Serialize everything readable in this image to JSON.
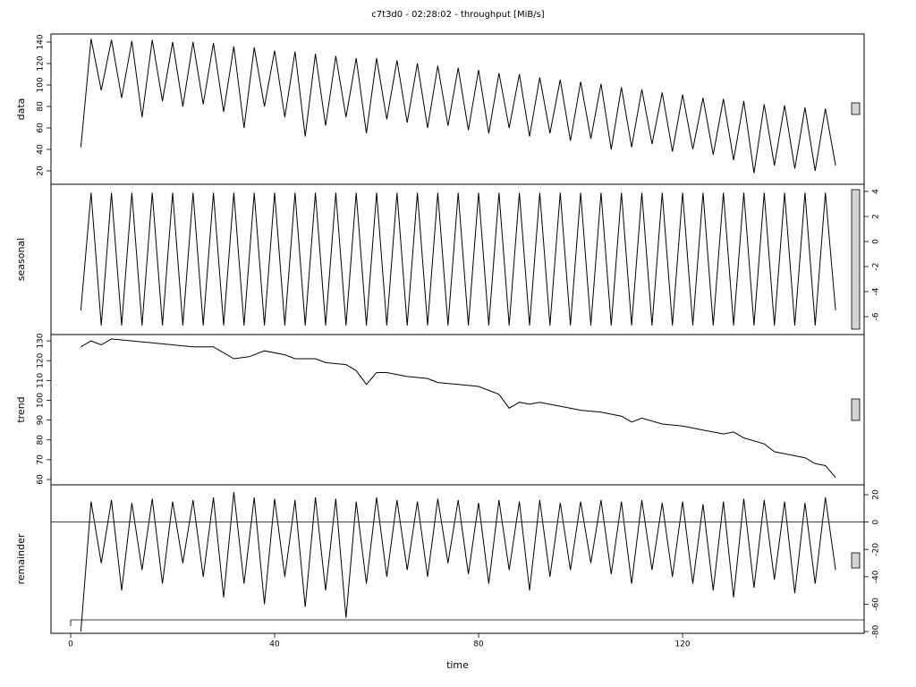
{
  "chart_data": [
    {
      "type": "line",
      "title": "c7t3d0 - 02:28:02 - throughput [MiB/s]",
      "ylabel": "data",
      "yaxis": "left",
      "xlim": [
        -3.86,
        155.6
      ],
      "ylim": [
        7.5,
        147.5
      ],
      "yticks": [
        20,
        40,
        60,
        80,
        100,
        120,
        140
      ],
      "series": [
        {
          "color": "#000000",
          "x": [
            2,
            4,
            6,
            8,
            10,
            12,
            14,
            16,
            18,
            20,
            22,
            24,
            26,
            28,
            30,
            32,
            34,
            36,
            38,
            40,
            42,
            44,
            46,
            48,
            50,
            52,
            54,
            56,
            58,
            60,
            62,
            64,
            66,
            68,
            70,
            72,
            74,
            76,
            78,
            80,
            82,
            84,
            86,
            88,
            90,
            92,
            94,
            96,
            98,
            100,
            102,
            104,
            106,
            108,
            110,
            112,
            114,
            116,
            118,
            120,
            122,
            124,
            126,
            128,
            130,
            132,
            134,
            136,
            138,
            140,
            142,
            144,
            146,
            148,
            150
          ],
          "values": [
            42,
            143,
            95,
            142,
            88,
            141,
            70,
            142,
            85,
            140,
            80,
            140,
            82,
            139,
            75,
            136,
            60,
            135,
            80,
            132,
            70,
            131,
            52,
            129,
            62,
            127,
            70,
            125,
            55,
            125,
            68,
            123,
            65,
            120,
            60,
            118,
            62,
            116,
            58,
            114,
            55,
            111,
            60,
            110,
            52,
            107,
            55,
            105,
            48,
            103,
            50,
            101,
            40,
            98,
            42,
            96,
            45,
            93,
            38,
            91,
            40,
            88,
            35,
            87,
            30,
            85,
            18,
            82,
            25,
            81,
            22,
            79,
            20,
            78,
            25
          ]
        }
      ]
    },
    {
      "type": "line",
      "ylabel": "seasonal",
      "yaxis": "right",
      "xlim": [
        -3.86,
        155.6
      ],
      "ylim": [
        -7.43,
        4.57
      ],
      "yticks": [
        -6,
        -4,
        -2,
        0,
        2,
        4
      ],
      "series": [
        {
          "color": "#000000",
          "x": [
            2,
            4,
            6,
            8,
            10,
            12,
            14,
            16,
            18,
            20,
            22,
            24,
            26,
            28,
            30,
            32,
            34,
            36,
            38,
            40,
            42,
            44,
            46,
            48,
            50,
            52,
            54,
            56,
            58,
            60,
            62,
            64,
            66,
            68,
            70,
            72,
            74,
            76,
            78,
            80,
            82,
            84,
            86,
            88,
            90,
            92,
            94,
            96,
            98,
            100,
            102,
            104,
            106,
            108,
            110,
            112,
            114,
            116,
            118,
            120,
            122,
            124,
            126,
            128,
            130,
            132,
            134,
            136,
            138,
            140,
            142,
            144,
            146,
            148,
            150
          ],
          "values": [
            -5.5,
            3.9,
            -6.7,
            3.9,
            -6.7,
            3.9,
            -6.7,
            3.9,
            -6.7,
            3.9,
            -6.7,
            3.9,
            -6.7,
            3.9,
            -6.7,
            3.9,
            -6.7,
            3.9,
            -6.7,
            3.9,
            -6.7,
            3.9,
            -6.7,
            3.9,
            -6.7,
            3.9,
            -6.7,
            3.9,
            -6.7,
            3.9,
            -6.7,
            3.9,
            -6.7,
            3.9,
            -6.7,
            3.9,
            -6.7,
            3.9,
            -6.7,
            3.9,
            -6.7,
            3.9,
            -6.7,
            3.9,
            -6.7,
            3.9,
            -6.7,
            3.9,
            -6.7,
            3.9,
            -6.7,
            3.9,
            -6.7,
            3.9,
            -6.7,
            3.9,
            -6.7,
            3.9,
            -6.7,
            3.9,
            -6.7,
            3.9,
            -6.7,
            3.9,
            -6.7,
            3.9,
            -6.7,
            3.9,
            -6.7,
            3.9,
            -6.7,
            3.9,
            -6.7,
            3.9,
            -5.5
          ]
        }
      ]
    },
    {
      "type": "line",
      "ylabel": "trend",
      "yaxis": "left",
      "xlim": [
        -3.86,
        155.6
      ],
      "ylim": [
        57.3,
        133.2
      ],
      "yticks": [
        60,
        70,
        80,
        90,
        100,
        110,
        120,
        130
      ],
      "series": [
        {
          "color": "#000000",
          "x": [
            2,
            4,
            6,
            8,
            12,
            16,
            20,
            24,
            28,
            30,
            32,
            35,
            38,
            42,
            44,
            48,
            50,
            54,
            56,
            58,
            60,
            62,
            66,
            70,
            72,
            76,
            80,
            82,
            84,
            86,
            88,
            90,
            92,
            96,
            100,
            104,
            108,
            110,
            112,
            116,
            120,
            124,
            128,
            130,
            132,
            136,
            138,
            140,
            142,
            144,
            146,
            148,
            150
          ],
          "values": [
            127,
            130,
            128,
            131,
            130,
            129,
            128,
            127,
            127,
            124,
            121,
            122,
            125,
            123,
            121,
            121,
            119,
            118,
            115,
            108,
            114,
            114,
            112,
            111,
            109,
            108,
            107,
            105,
            103,
            96,
            99,
            98,
            99,
            97,
            95,
            94,
            92,
            89,
            91,
            88,
            87,
            85,
            83,
            84,
            81,
            78,
            74,
            73,
            72,
            71,
            68,
            67,
            61
          ]
        }
      ]
    },
    {
      "type": "line",
      "ylabel": "remainder",
      "xlabel": "time",
      "yaxis": "right",
      "hline": 0,
      "xlim": [
        -3.86,
        155.6
      ],
      "ylim": [
        -81.3,
        27.2
      ],
      "yticks": [
        -80,
        -60,
        -40,
        -20,
        0,
        20
      ],
      "xticks": [
        0,
        40,
        80,
        120
      ],
      "series": [
        {
          "color": "#000000",
          "x": [
            2,
            4,
            6,
            8,
            10,
            12,
            14,
            16,
            18,
            20,
            22,
            24,
            26,
            28,
            30,
            32,
            34,
            36,
            38,
            40,
            42,
            44,
            46,
            48,
            50,
            52,
            54,
            56,
            58,
            60,
            62,
            64,
            66,
            68,
            70,
            72,
            74,
            76,
            78,
            80,
            82,
            84,
            86,
            88,
            90,
            92,
            94,
            96,
            98,
            100,
            102,
            104,
            106,
            108,
            110,
            112,
            114,
            116,
            118,
            120,
            122,
            124,
            126,
            128,
            130,
            132,
            134,
            136,
            138,
            140,
            142,
            144,
            146,
            148,
            150
          ],
          "values": [
            -80,
            15,
            -30,
            16,
            -50,
            14,
            -35,
            17,
            -45,
            15,
            -30,
            16,
            -40,
            18,
            -55,
            22,
            -45,
            18,
            -60,
            17,
            -40,
            16,
            -62,
            18,
            -50,
            17,
            -70,
            15,
            -45,
            18,
            -40,
            16,
            -35,
            15,
            -40,
            17,
            -30,
            16,
            -38,
            14,
            -45,
            16,
            -35,
            15,
            -50,
            16,
            -40,
            14,
            -35,
            15,
            -30,
            16,
            -38,
            15,
            -45,
            16,
            -35,
            14,
            -40,
            15,
            -45,
            13,
            -50,
            15,
            -55,
            17,
            -48,
            16,
            -42,
            15,
            -52,
            14,
            -45,
            18,
            -35
          ]
        }
      ]
    }
  ]
}
